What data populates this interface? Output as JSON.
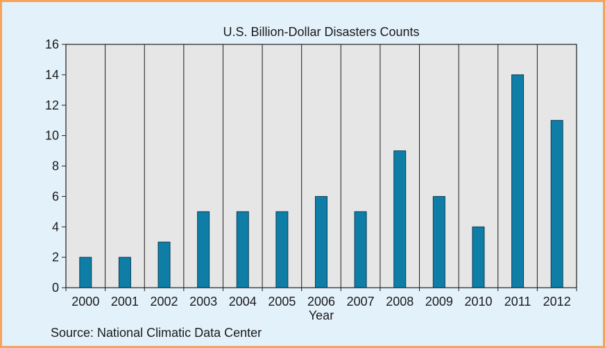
{
  "chart_data": {
    "type": "bar",
    "title": "U.S. Billion-Dollar Disasters Counts",
    "xlabel": "Year",
    "ylabel": "",
    "categories": [
      "2000",
      "2001",
      "2002",
      "2003",
      "2004",
      "2005",
      "2006",
      "2007",
      "2008",
      "2009",
      "2010",
      "2011",
      "2012"
    ],
    "values": [
      2,
      2,
      3,
      5,
      5,
      5,
      6,
      5,
      9,
      6,
      4,
      14,
      11
    ],
    "ylim": [
      0,
      16
    ],
    "yticks": [
      "0",
      "2",
      "4",
      "6",
      "8",
      "10",
      "12",
      "14",
      "16"
    ],
    "grid": "vertical lines between categories",
    "legend": "none"
  },
  "source_note": "Source: National Climatic Data Center",
  "colors": {
    "bar": "#0f7ea6",
    "bar_stroke": "#0a3c55",
    "plot_background": "#e6e6e6",
    "panel_background": "#e3f1fb",
    "panel_border": "#f5a45a"
  }
}
